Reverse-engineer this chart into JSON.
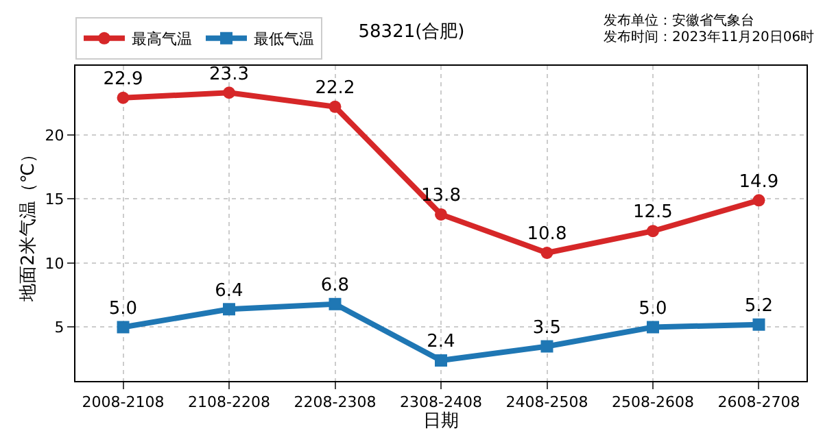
{
  "chart_data": {
    "type": "line",
    "title": "58321(合肥)",
    "xlabel": "日期",
    "ylabel": "地面2米气温（℃）",
    "annotations": [
      "发布单位：安徽省气象台",
      "发布时间：2023年11月20日06时"
    ],
    "categories": [
      "2008-2108",
      "2108-2208",
      "2208-2308",
      "2308-2408",
      "2408-2508",
      "2508-2608",
      "2608-2708"
    ],
    "series": [
      {
        "name": "最高气温",
        "color": "#d62728",
        "marker": "circle",
        "values": [
          22.9,
          23.3,
          22.2,
          13.8,
          10.8,
          12.5,
          14.9
        ],
        "value_labels": [
          "22.9",
          "23.3",
          "22.2",
          "13.8",
          "10.8",
          "12.5",
          "14.9"
        ]
      },
      {
        "name": "最低气温",
        "color": "#1f77b4",
        "marker": "square",
        "values": [
          5.0,
          6.4,
          6.8,
          2.4,
          3.5,
          5.0,
          5.2
        ],
        "value_labels": [
          "5.0",
          "6.4",
          "6.8",
          "2.4",
          "3.5",
          "5.0",
          "5.2"
        ]
      }
    ],
    "ylim": [
      0.8,
      25.4
    ],
    "yticks": [
      5,
      10,
      15,
      20
    ],
    "grid": true,
    "legend": "top left",
    "line_style": "solid"
  }
}
